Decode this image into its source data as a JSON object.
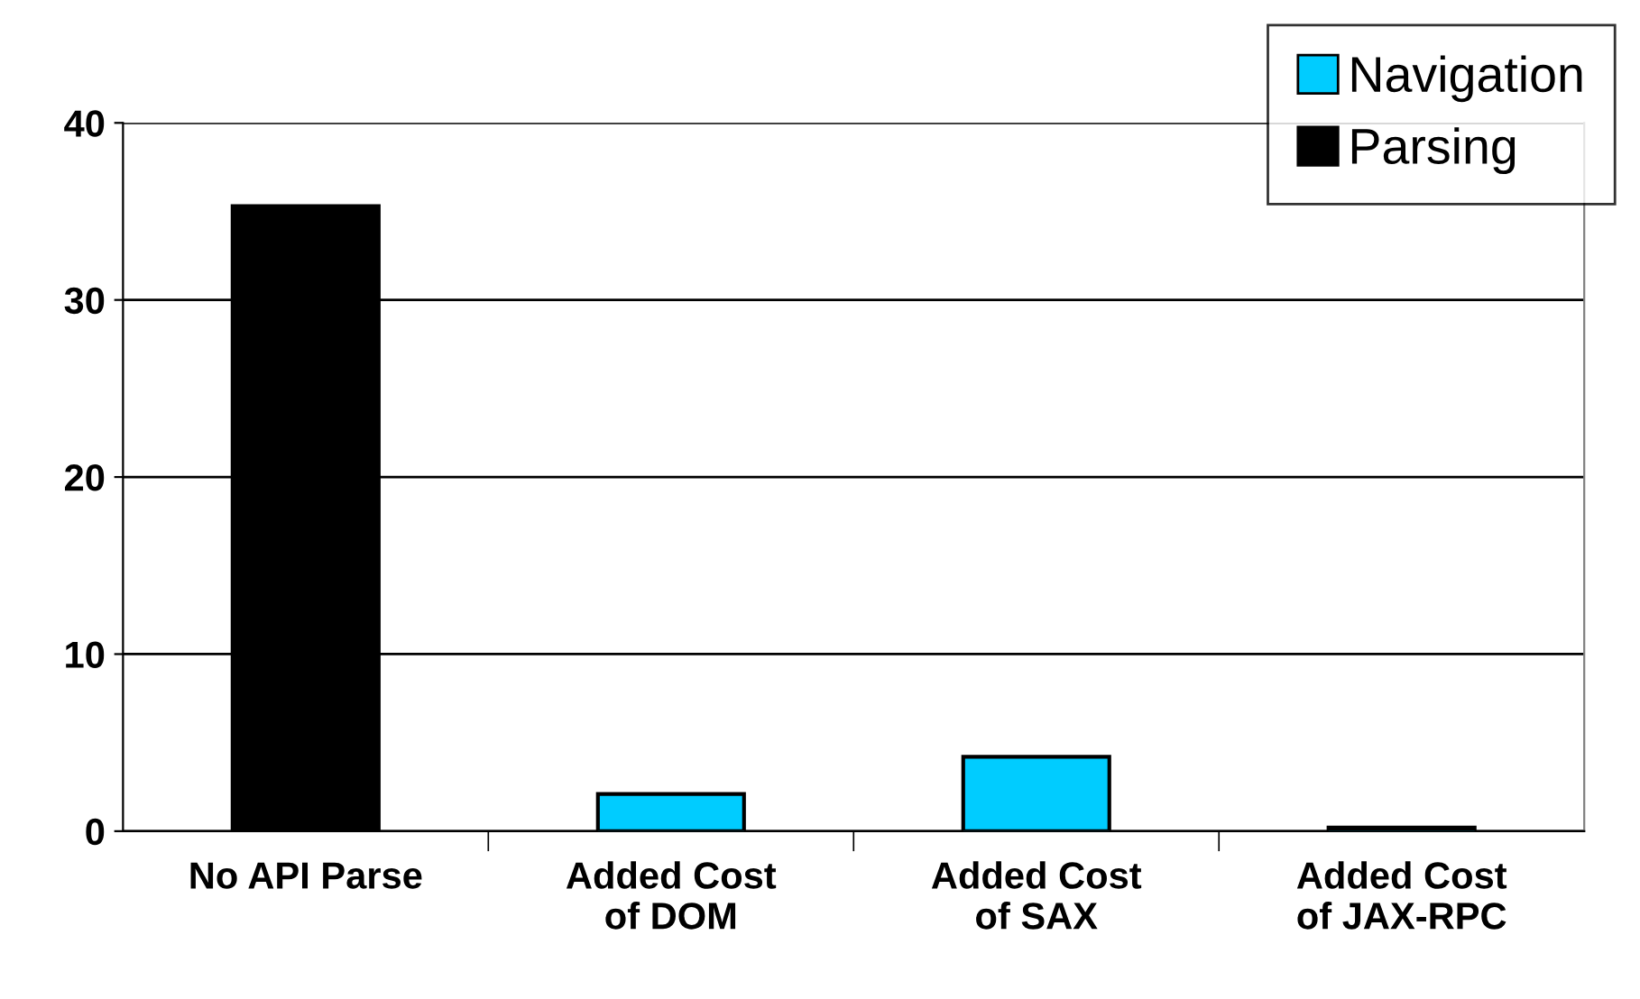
{
  "chart_data": {
    "type": "bar",
    "categories": [
      "No API Parse",
      "Added Cost\nof DOM",
      "Added Cost\nof SAX",
      "Added Cost\nof JAX-RPC"
    ],
    "series": [
      {
        "name": "Navigation",
        "color": "#00ccff",
        "values": [
          null,
          2.1,
          4.2,
          0.2
        ]
      },
      {
        "name": "Parsing",
        "color": "#000000",
        "values": [
          35.3,
          null,
          null,
          null
        ]
      }
    ],
    "ylim": [
      0,
      40
    ],
    "yticks": [
      0,
      10,
      20,
      30,
      40
    ],
    "grid": "y",
    "legend": "top right"
  }
}
